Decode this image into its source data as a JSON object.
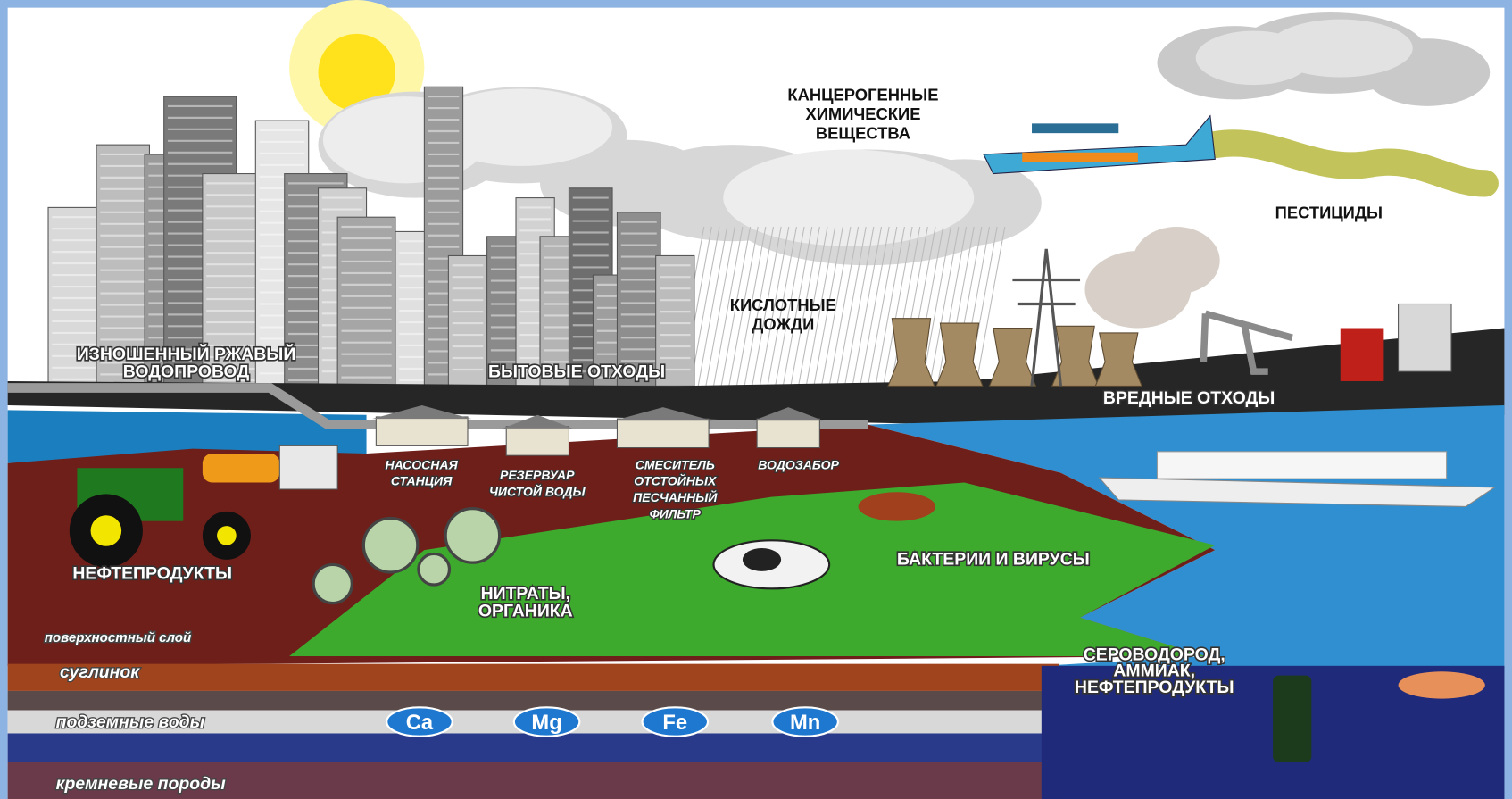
{
  "labels": {
    "carcinogens": [
      "КАНЦЕРОГЕННЫЕ",
      "ХИМИЧЕСКИЕ",
      "ВЕЩЕСТВА"
    ],
    "pesticides": [
      "ПЕСТИЦИДЫ"
    ],
    "acid_rain": [
      "КИСЛОТНЫЕ",
      "ДОЖДИ"
    ],
    "worn_pipe": [
      "ИЗНОШЕННЫЙ РЖАВЫЙ",
      "ВОДОПРОВОД"
    ],
    "household_waste": [
      "БЫТОВЫЕ ОТХОДЫ"
    ],
    "harmful_waste": [
      "ВРЕДНЫЕ ОТХОДЫ"
    ],
    "pump_station": [
      "НАСОСНАЯ",
      "СТАНЦИЯ"
    ],
    "reservoir": [
      "РЕЗЕРВУАР",
      "ЧИСТОЙ ВОДЫ"
    ],
    "mixer": [
      "СМЕСИТЕЛЬ",
      "ОТСТОЙНЫХ",
      "ПЕСЧАННЫЙ",
      "ФИЛЬТР"
    ],
    "intake": [
      "ВОДОЗАБОР"
    ],
    "oil_products": [
      "НЕФТЕПРОДУКТЫ"
    ],
    "bacteria": [
      "БАКТЕРИИ И ВИРУСЫ"
    ],
    "nitrates": [
      "НИТРАТЫ,",
      "ОРГАНИКА"
    ],
    "hydrogen_sulfide": [
      "СЕРОВОДОРОД,",
      "АММИАК,",
      "НЕФТЕПРОДУКТЫ"
    ]
  },
  "layers": [
    "поверхностный слой",
    "суглинок",
    "подземные воды",
    "кремневые породы"
  ],
  "ions": [
    "Ca",
    "Mg",
    "Fe",
    "Mn"
  ]
}
